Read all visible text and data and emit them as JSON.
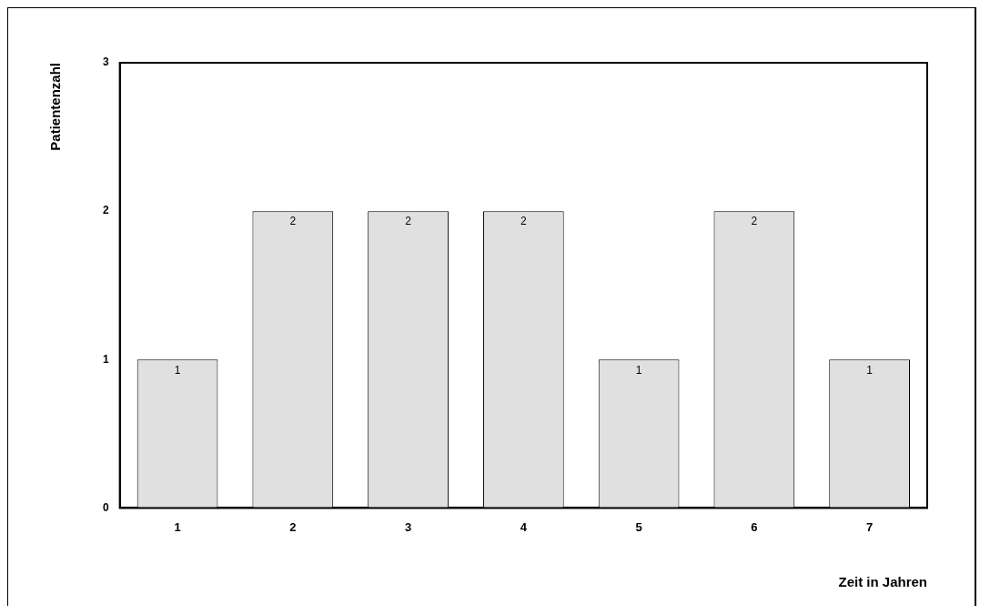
{
  "chart_data": {
    "type": "bar",
    "xlabel": "Zeit in Jahren",
    "ylabel": "Patientenzahl",
    "categories": [
      "1",
      "2",
      "3",
      "4",
      "5",
      "6",
      "7"
    ],
    "values": [
      1,
      2,
      2,
      2,
      1,
      2,
      1
    ],
    "color": "#e0e0e0",
    "ylim": [
      0,
      3
    ],
    "yticks": [
      0,
      1,
      2,
      3
    ],
    "data_labels": true
  }
}
